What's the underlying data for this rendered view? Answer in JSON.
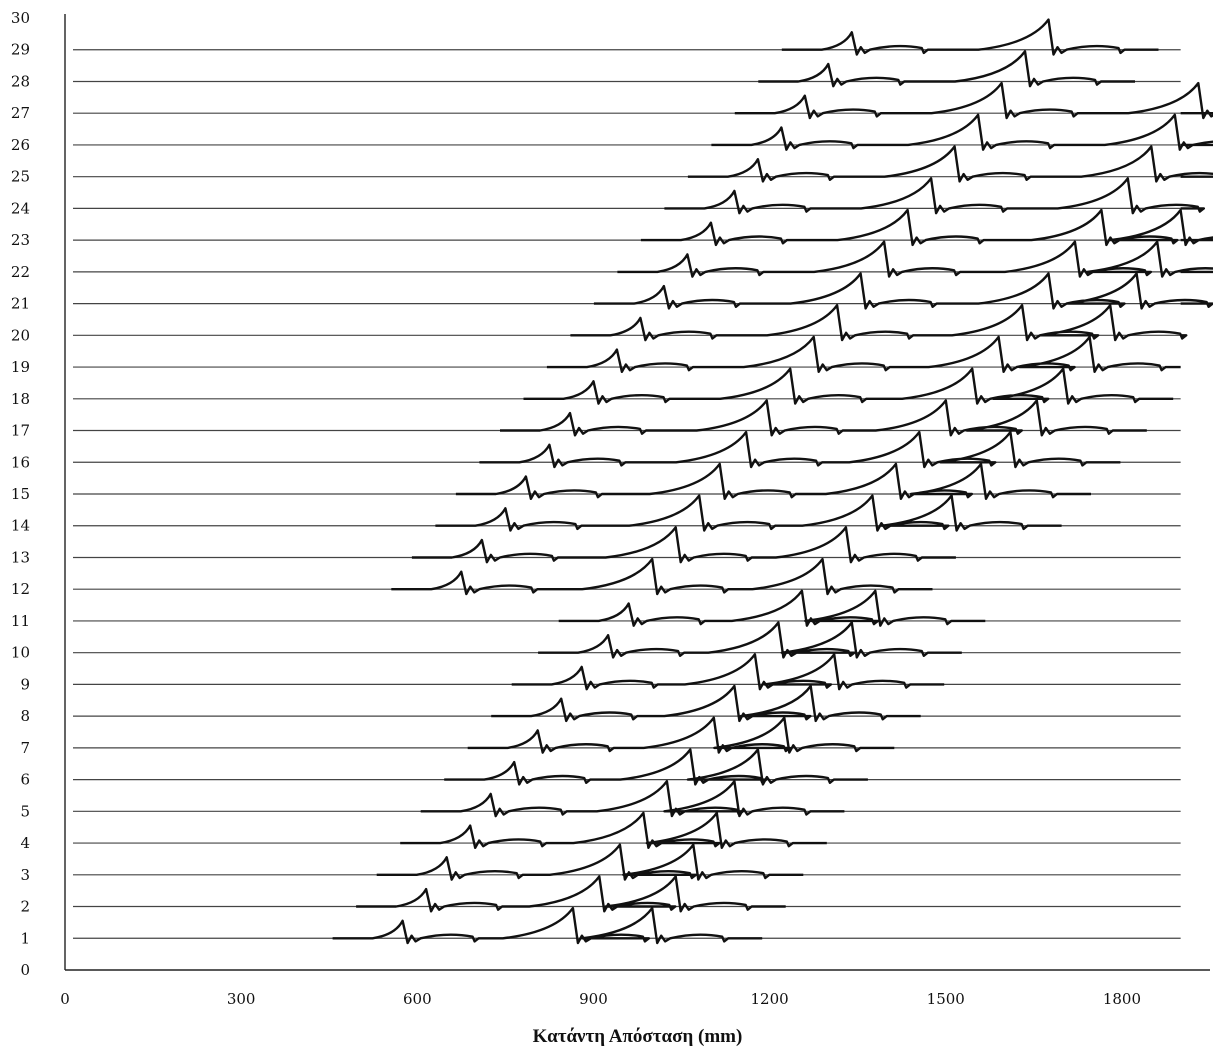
{
  "chart_data": {
    "type": "line",
    "title": "",
    "xlabel": "Κατάντη Απόσταση (mm)",
    "ylabel": "",
    "xlim": [
      0,
      1950
    ],
    "ylim": [
      0,
      30
    ],
    "x_ticks": [
      "0",
      "300",
      "600",
      "900",
      "1200",
      "1500",
      "1800"
    ],
    "x_tick_values": [
      0,
      300,
      600,
      900,
      1200,
      1500,
      1800
    ],
    "y_ticks": [
      "0",
      "1",
      "2",
      "3",
      "4",
      "5",
      "6",
      "7",
      "8",
      "9",
      "10",
      "11",
      "12",
      "13",
      "14",
      "15",
      "16",
      "17",
      "18",
      "19",
      "20",
      "21",
      "22",
      "23",
      "24",
      "25",
      "26",
      "27",
      "28",
      "29",
      "30"
    ],
    "grid": false,
    "series": [
      {
        "row": 1,
        "crests": [
          575,
          865,
          1000
        ]
      },
      {
        "row": 2,
        "crests": [
          615,
          910,
          1040
        ]
      },
      {
        "row": 3,
        "crests": [
          650,
          945,
          1070
        ]
      },
      {
        "row": 4,
        "crests": [
          690,
          985,
          1110
        ]
      },
      {
        "row": 5,
        "crests": [
          725,
          1025,
          1140
        ]
      },
      {
        "row": 6,
        "crests": [
          765,
          1065,
          1180
        ]
      },
      {
        "row": 7,
        "crests": [
          805,
          1105,
          1225
        ]
      },
      {
        "row": 8,
        "crests": [
          845,
          1140,
          1270
        ]
      },
      {
        "row": 9,
        "crests": [
          880,
          1175,
          1310
        ]
      },
      {
        "row": 10,
        "crests": [
          925,
          1215,
          1340
        ]
      },
      {
        "row": 11,
        "crests": [
          960,
          1255,
          1380
        ]
      },
      {
        "row": 12,
        "crests": [
          675,
          1000,
          1290
        ]
      },
      {
        "row": 13,
        "crests": [
          710,
          1040,
          1330
        ]
      },
      {
        "row": 14,
        "crests": [
          750,
          1080,
          1375,
          1510
        ]
      },
      {
        "row": 15,
        "crests": [
          785,
          1115,
          1415,
          1560
        ]
      },
      {
        "row": 16,
        "crests": [
          825,
          1160,
          1455,
          1610
        ]
      },
      {
        "row": 17,
        "crests": [
          860,
          1195,
          1500,
          1655
        ]
      },
      {
        "row": 18,
        "crests": [
          900,
          1235,
          1545,
          1700
        ]
      },
      {
        "row": 19,
        "crests": [
          940,
          1275,
          1590,
          1745
        ]
      },
      {
        "row": 20,
        "crests": [
          980,
          1315,
          1630,
          1780
        ]
      },
      {
        "row": 21,
        "crests": [
          1020,
          1355,
          1675,
          1825
        ]
      },
      {
        "row": 22,
        "crests": [
          1060,
          1395,
          1720,
          1860
        ]
      },
      {
        "row": 23,
        "crests": [
          1100,
          1435,
          1765,
          1900
        ]
      },
      {
        "row": 24,
        "crests": [
          1140,
          1475,
          1810
        ]
      },
      {
        "row": 25,
        "crests": [
          1180,
          1515,
          1850
        ]
      },
      {
        "row": 26,
        "crests": [
          1220,
          1555,
          1890
        ]
      },
      {
        "row": 27,
        "crests": [
          1260,
          1595,
          1930
        ]
      },
      {
        "row": 28,
        "crests": [
          1300,
          1635
        ]
      },
      {
        "row": 29,
        "crests": [
          1340,
          1675
        ]
      }
    ]
  }
}
